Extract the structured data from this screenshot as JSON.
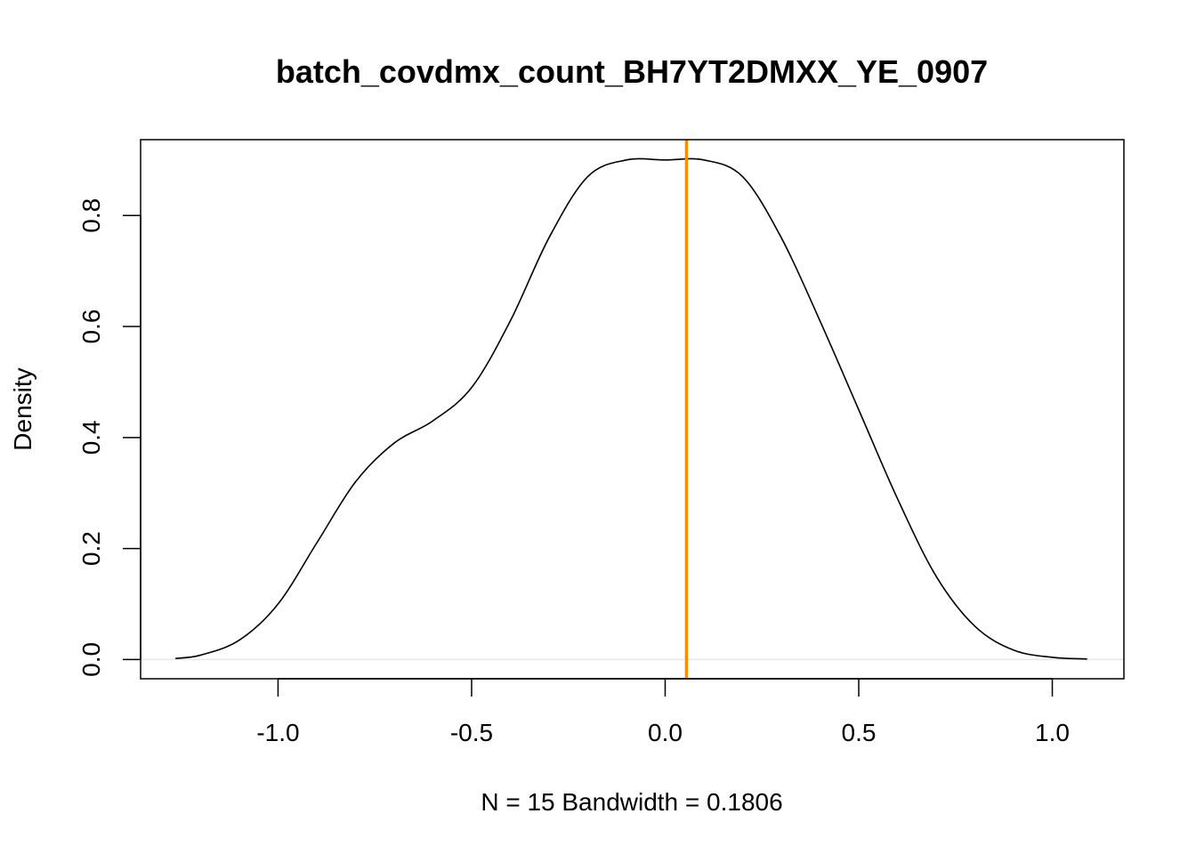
{
  "chart_data": {
    "type": "line",
    "title": "batch_covdmx_count_BH7YT2DMXX_YE_0907",
    "xlabel": "N = 15   Bandwidth = 0.1806",
    "ylabel": "Density",
    "xlim": [
      -1.355,
      1.185
    ],
    "ylim": [
      -0.0346,
      0.9366
    ],
    "x_ticks": [
      -1.0,
      -0.5,
      0.0,
      0.5,
      1.0
    ],
    "x_tick_labels": [
      "-1.0",
      "-0.5",
      "0.0",
      "0.5",
      "1.0"
    ],
    "y_ticks": [
      0.0,
      0.2,
      0.4,
      0.6,
      0.8
    ],
    "y_tick_labels": [
      "0.0",
      "0.2",
      "0.4",
      "0.6",
      "0.8"
    ],
    "grid": false,
    "zero_line": {
      "y": 0,
      "color": "#e6e6e6"
    },
    "series": [
      {
        "color": "#000000",
        "x": [
          -1.265,
          -1.2,
          -1.1,
          -1.0,
          -0.9,
          -0.8,
          -0.7,
          -0.6,
          -0.5,
          -0.4,
          -0.3,
          -0.2,
          -0.1,
          0.0,
          0.1,
          0.2,
          0.3,
          0.4,
          0.5,
          0.6,
          0.7,
          0.8,
          0.9,
          1.0,
          1.09
        ],
        "y": [
          0.002,
          0.008,
          0.035,
          0.1,
          0.21,
          0.32,
          0.39,
          0.43,
          0.49,
          0.61,
          0.76,
          0.87,
          0.9,
          0.9,
          0.9,
          0.87,
          0.76,
          0.61,
          0.45,
          0.29,
          0.15,
          0.06,
          0.017,
          0.004,
          0.001
        ]
      }
    ],
    "vline": {
      "x": 0.055,
      "color": "#FF8C00"
    }
  }
}
